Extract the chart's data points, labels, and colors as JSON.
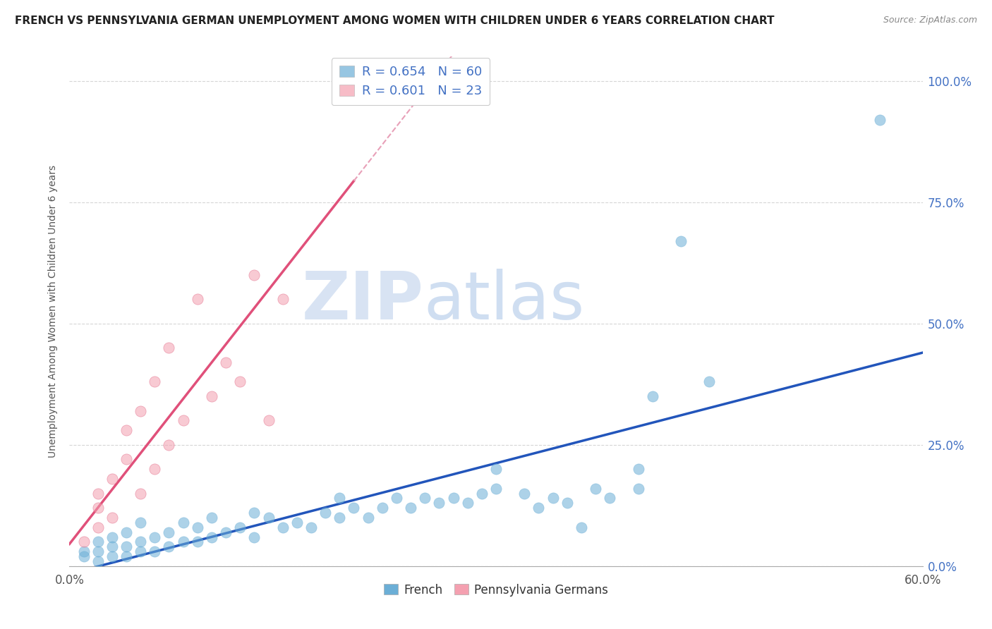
{
  "title": "FRENCH VS PENNSYLVANIA GERMAN UNEMPLOYMENT AMONG WOMEN WITH CHILDREN UNDER 6 YEARS CORRELATION CHART",
  "source": "Source: ZipAtlas.com",
  "ylabel": "Unemployment Among Women with Children Under 6 years",
  "xlim": [
    0.0,
    0.6
  ],
  "ylim": [
    0.0,
    1.05
  ],
  "xtick_positions": [
    0.0,
    0.1,
    0.2,
    0.3,
    0.4,
    0.5,
    0.6
  ],
  "xtick_labels": [
    "0.0%",
    "",
    "",
    "",
    "",
    "",
    "60.0%"
  ],
  "ytick_right_labels": [
    "0.0%",
    "25.0%",
    "50.0%",
    "75.0%",
    "100.0%"
  ],
  "ytick_right_values": [
    0.0,
    0.25,
    0.5,
    0.75,
    1.0
  ],
  "french_color": "#6baed6",
  "french_edge_color": "#4a90d9",
  "pg_color": "#f4a0b0",
  "pg_edge_color": "#e06080",
  "legend_R_label": "R = 0.654   N = 60",
  "legend_R2_label": "R = 0.601   N = 23",
  "watermark_zip": "ZIP",
  "watermark_atlas": "atlas",
  "background_color": "#ffffff",
  "french_scatter": [
    [
      0.01,
      0.02
    ],
    [
      0.01,
      0.03
    ],
    [
      0.02,
      0.01
    ],
    [
      0.02,
      0.03
    ],
    [
      0.02,
      0.05
    ],
    [
      0.03,
      0.02
    ],
    [
      0.03,
      0.04
    ],
    [
      0.03,
      0.06
    ],
    [
      0.04,
      0.02
    ],
    [
      0.04,
      0.04
    ],
    [
      0.04,
      0.07
    ],
    [
      0.05,
      0.03
    ],
    [
      0.05,
      0.05
    ],
    [
      0.05,
      0.09
    ],
    [
      0.06,
      0.03
    ],
    [
      0.06,
      0.06
    ],
    [
      0.07,
      0.04
    ],
    [
      0.07,
      0.07
    ],
    [
      0.08,
      0.05
    ],
    [
      0.08,
      0.09
    ],
    [
      0.09,
      0.05
    ],
    [
      0.09,
      0.08
    ],
    [
      0.1,
      0.06
    ],
    [
      0.1,
      0.1
    ],
    [
      0.11,
      0.07
    ],
    [
      0.12,
      0.08
    ],
    [
      0.13,
      0.06
    ],
    [
      0.13,
      0.11
    ],
    [
      0.14,
      0.1
    ],
    [
      0.15,
      0.08
    ],
    [
      0.16,
      0.09
    ],
    [
      0.17,
      0.08
    ],
    [
      0.18,
      0.11
    ],
    [
      0.19,
      0.1
    ],
    [
      0.19,
      0.14
    ],
    [
      0.2,
      0.12
    ],
    [
      0.21,
      0.1
    ],
    [
      0.22,
      0.12
    ],
    [
      0.23,
      0.14
    ],
    [
      0.24,
      0.12
    ],
    [
      0.25,
      0.14
    ],
    [
      0.26,
      0.13
    ],
    [
      0.27,
      0.14
    ],
    [
      0.28,
      0.13
    ],
    [
      0.29,
      0.15
    ],
    [
      0.3,
      0.16
    ],
    [
      0.3,
      0.2
    ],
    [
      0.32,
      0.15
    ],
    [
      0.33,
      0.12
    ],
    [
      0.34,
      0.14
    ],
    [
      0.35,
      0.13
    ],
    [
      0.36,
      0.08
    ],
    [
      0.37,
      0.16
    ],
    [
      0.38,
      0.14
    ],
    [
      0.4,
      0.2
    ],
    [
      0.4,
      0.16
    ],
    [
      0.41,
      0.35
    ],
    [
      0.43,
      0.67
    ],
    [
      0.45,
      0.38
    ],
    [
      0.57,
      0.92
    ]
  ],
  "pg_scatter": [
    [
      0.01,
      0.05
    ],
    [
      0.02,
      0.08
    ],
    [
      0.02,
      0.12
    ],
    [
      0.02,
      0.15
    ],
    [
      0.03,
      0.1
    ],
    [
      0.03,
      0.18
    ],
    [
      0.04,
      0.22
    ],
    [
      0.04,
      0.28
    ],
    [
      0.05,
      0.15
    ],
    [
      0.05,
      0.32
    ],
    [
      0.06,
      0.2
    ],
    [
      0.06,
      0.38
    ],
    [
      0.07,
      0.25
    ],
    [
      0.07,
      0.45
    ],
    [
      0.08,
      0.3
    ],
    [
      0.09,
      0.55
    ],
    [
      0.1,
      0.35
    ],
    [
      0.11,
      0.42
    ],
    [
      0.12,
      0.38
    ],
    [
      0.13,
      0.6
    ],
    [
      0.14,
      0.3
    ],
    [
      0.15,
      0.55
    ],
    [
      0.2,
      0.99
    ]
  ],
  "french_line_color": "#2255bb",
  "pg_line_color": "#e0507a",
  "pg_line_dashed_color": "#e8a0b8"
}
